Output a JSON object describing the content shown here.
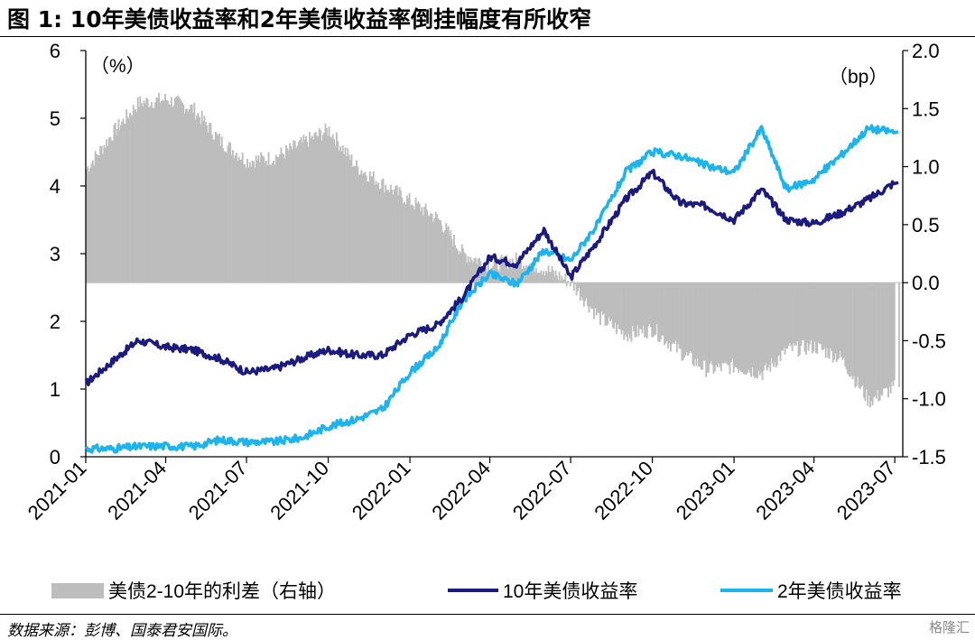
{
  "header": {
    "title": "图 1:  10年美债收益率和2年美债收益率倒挂幅度有所收窄"
  },
  "footer": {
    "source": "数据来源：彭博、国泰君安国际。",
    "watermark": "格隆汇"
  },
  "chart_data": {
    "type": "line",
    "title": "10年美债收益率和2年美债收益率倒挂幅度有所收窄",
    "left_axis": {
      "unit_label": "（%）",
      "range": [
        0,
        6
      ],
      "ticks": [
        "0",
        "1",
        "2",
        "3",
        "4",
        "5",
        "6"
      ]
    },
    "right_axis": {
      "unit_label": "（bp）",
      "range": [
        -1.5,
        2.0
      ],
      "ticks": [
        "-1.5",
        "-1.0",
        "-0.5",
        "0.0",
        "0.5",
        "1.0",
        "1.5",
        "2.0"
      ]
    },
    "x_axis": {
      "range": [
        "2021-01",
        "2023-07"
      ],
      "ticks": [
        "2021-01",
        "2021-04",
        "2021-07",
        "2021-10",
        "2022-01",
        "2022-04",
        "2022-07",
        "2022-10",
        "2023-01",
        "2023-04",
        "2023-07"
      ]
    },
    "grid": false,
    "legend_position": "bottom",
    "colors": {
      "spread": "#bdbdbd",
      "ten_year": "#1a1a80",
      "two_year": "#1cb4ef"
    },
    "series": [
      {
        "name": "美债2-10年的利差（右轴）",
        "kind": "bar",
        "axis": "right",
        "x": [
          "2021-01",
          "2021-02",
          "2021-03",
          "2021-04",
          "2021-05",
          "2021-06",
          "2021-07",
          "2021-08",
          "2021-09",
          "2021-10",
          "2021-11",
          "2021-12",
          "2022-01",
          "2022-02",
          "2022-03",
          "2022-04",
          "2022-05",
          "2022-06",
          "2022-07",
          "2022-08",
          "2022-09",
          "2022-10",
          "2022-11",
          "2022-12",
          "2023-01",
          "2023-02",
          "2023-03",
          "2023-04",
          "2023-05",
          "2023-06",
          "2023-07"
        ],
        "values": [
          0.98,
          1.3,
          1.55,
          1.58,
          1.5,
          1.22,
          1.05,
          1.08,
          1.2,
          1.32,
          1.0,
          0.85,
          0.7,
          0.55,
          0.25,
          0.15,
          0.2,
          0.12,
          0.0,
          -0.3,
          -0.45,
          -0.4,
          -0.6,
          -0.75,
          -0.72,
          -0.78,
          -0.58,
          -0.55,
          -0.65,
          -1.02,
          -0.9
        ]
      },
      {
        "name": "10年美债收益率",
        "kind": "line",
        "axis": "left",
        "x": [
          "2021-01",
          "2021-02",
          "2021-03",
          "2021-04",
          "2021-05",
          "2021-06",
          "2021-07",
          "2021-08",
          "2021-09",
          "2021-10",
          "2021-11",
          "2021-12",
          "2022-01",
          "2022-02",
          "2022-03",
          "2022-04",
          "2022-05",
          "2022-06",
          "2022-07",
          "2022-08",
          "2022-09",
          "2022-10",
          "2022-11",
          "2022-12",
          "2023-01",
          "2023-02",
          "2023-03",
          "2023-04",
          "2023-05",
          "2023-06",
          "2023-07"
        ],
        "values": [
          1.08,
          1.42,
          1.72,
          1.62,
          1.58,
          1.45,
          1.25,
          1.3,
          1.45,
          1.58,
          1.5,
          1.5,
          1.8,
          1.95,
          2.35,
          2.95,
          2.85,
          3.35,
          2.65,
          3.2,
          3.8,
          4.2,
          3.75,
          3.7,
          3.5,
          3.95,
          3.5,
          3.45,
          3.6,
          3.8,
          4.05
        ]
      },
      {
        "name": "2年美债收益率",
        "kind": "line",
        "axis": "left",
        "x": [
          "2021-01",
          "2021-02",
          "2021-03",
          "2021-04",
          "2021-05",
          "2021-06",
          "2021-07",
          "2021-08",
          "2021-09",
          "2021-10",
          "2021-11",
          "2021-12",
          "2022-01",
          "2022-02",
          "2022-03",
          "2022-04",
          "2022-05",
          "2022-06",
          "2022-07",
          "2022-08",
          "2022-09",
          "2022-10",
          "2022-11",
          "2022-12",
          "2023-01",
          "2023-02",
          "2023-03",
          "2023-04",
          "2023-05",
          "2023-06",
          "2023-07"
        ],
        "values": [
          0.12,
          0.12,
          0.15,
          0.16,
          0.15,
          0.25,
          0.22,
          0.22,
          0.28,
          0.45,
          0.55,
          0.7,
          1.25,
          1.6,
          2.3,
          2.7,
          2.55,
          3.05,
          2.9,
          3.45,
          4.2,
          4.5,
          4.45,
          4.3,
          4.2,
          4.85,
          3.95,
          4.1,
          4.45,
          4.85,
          4.8
        ]
      }
    ]
  }
}
